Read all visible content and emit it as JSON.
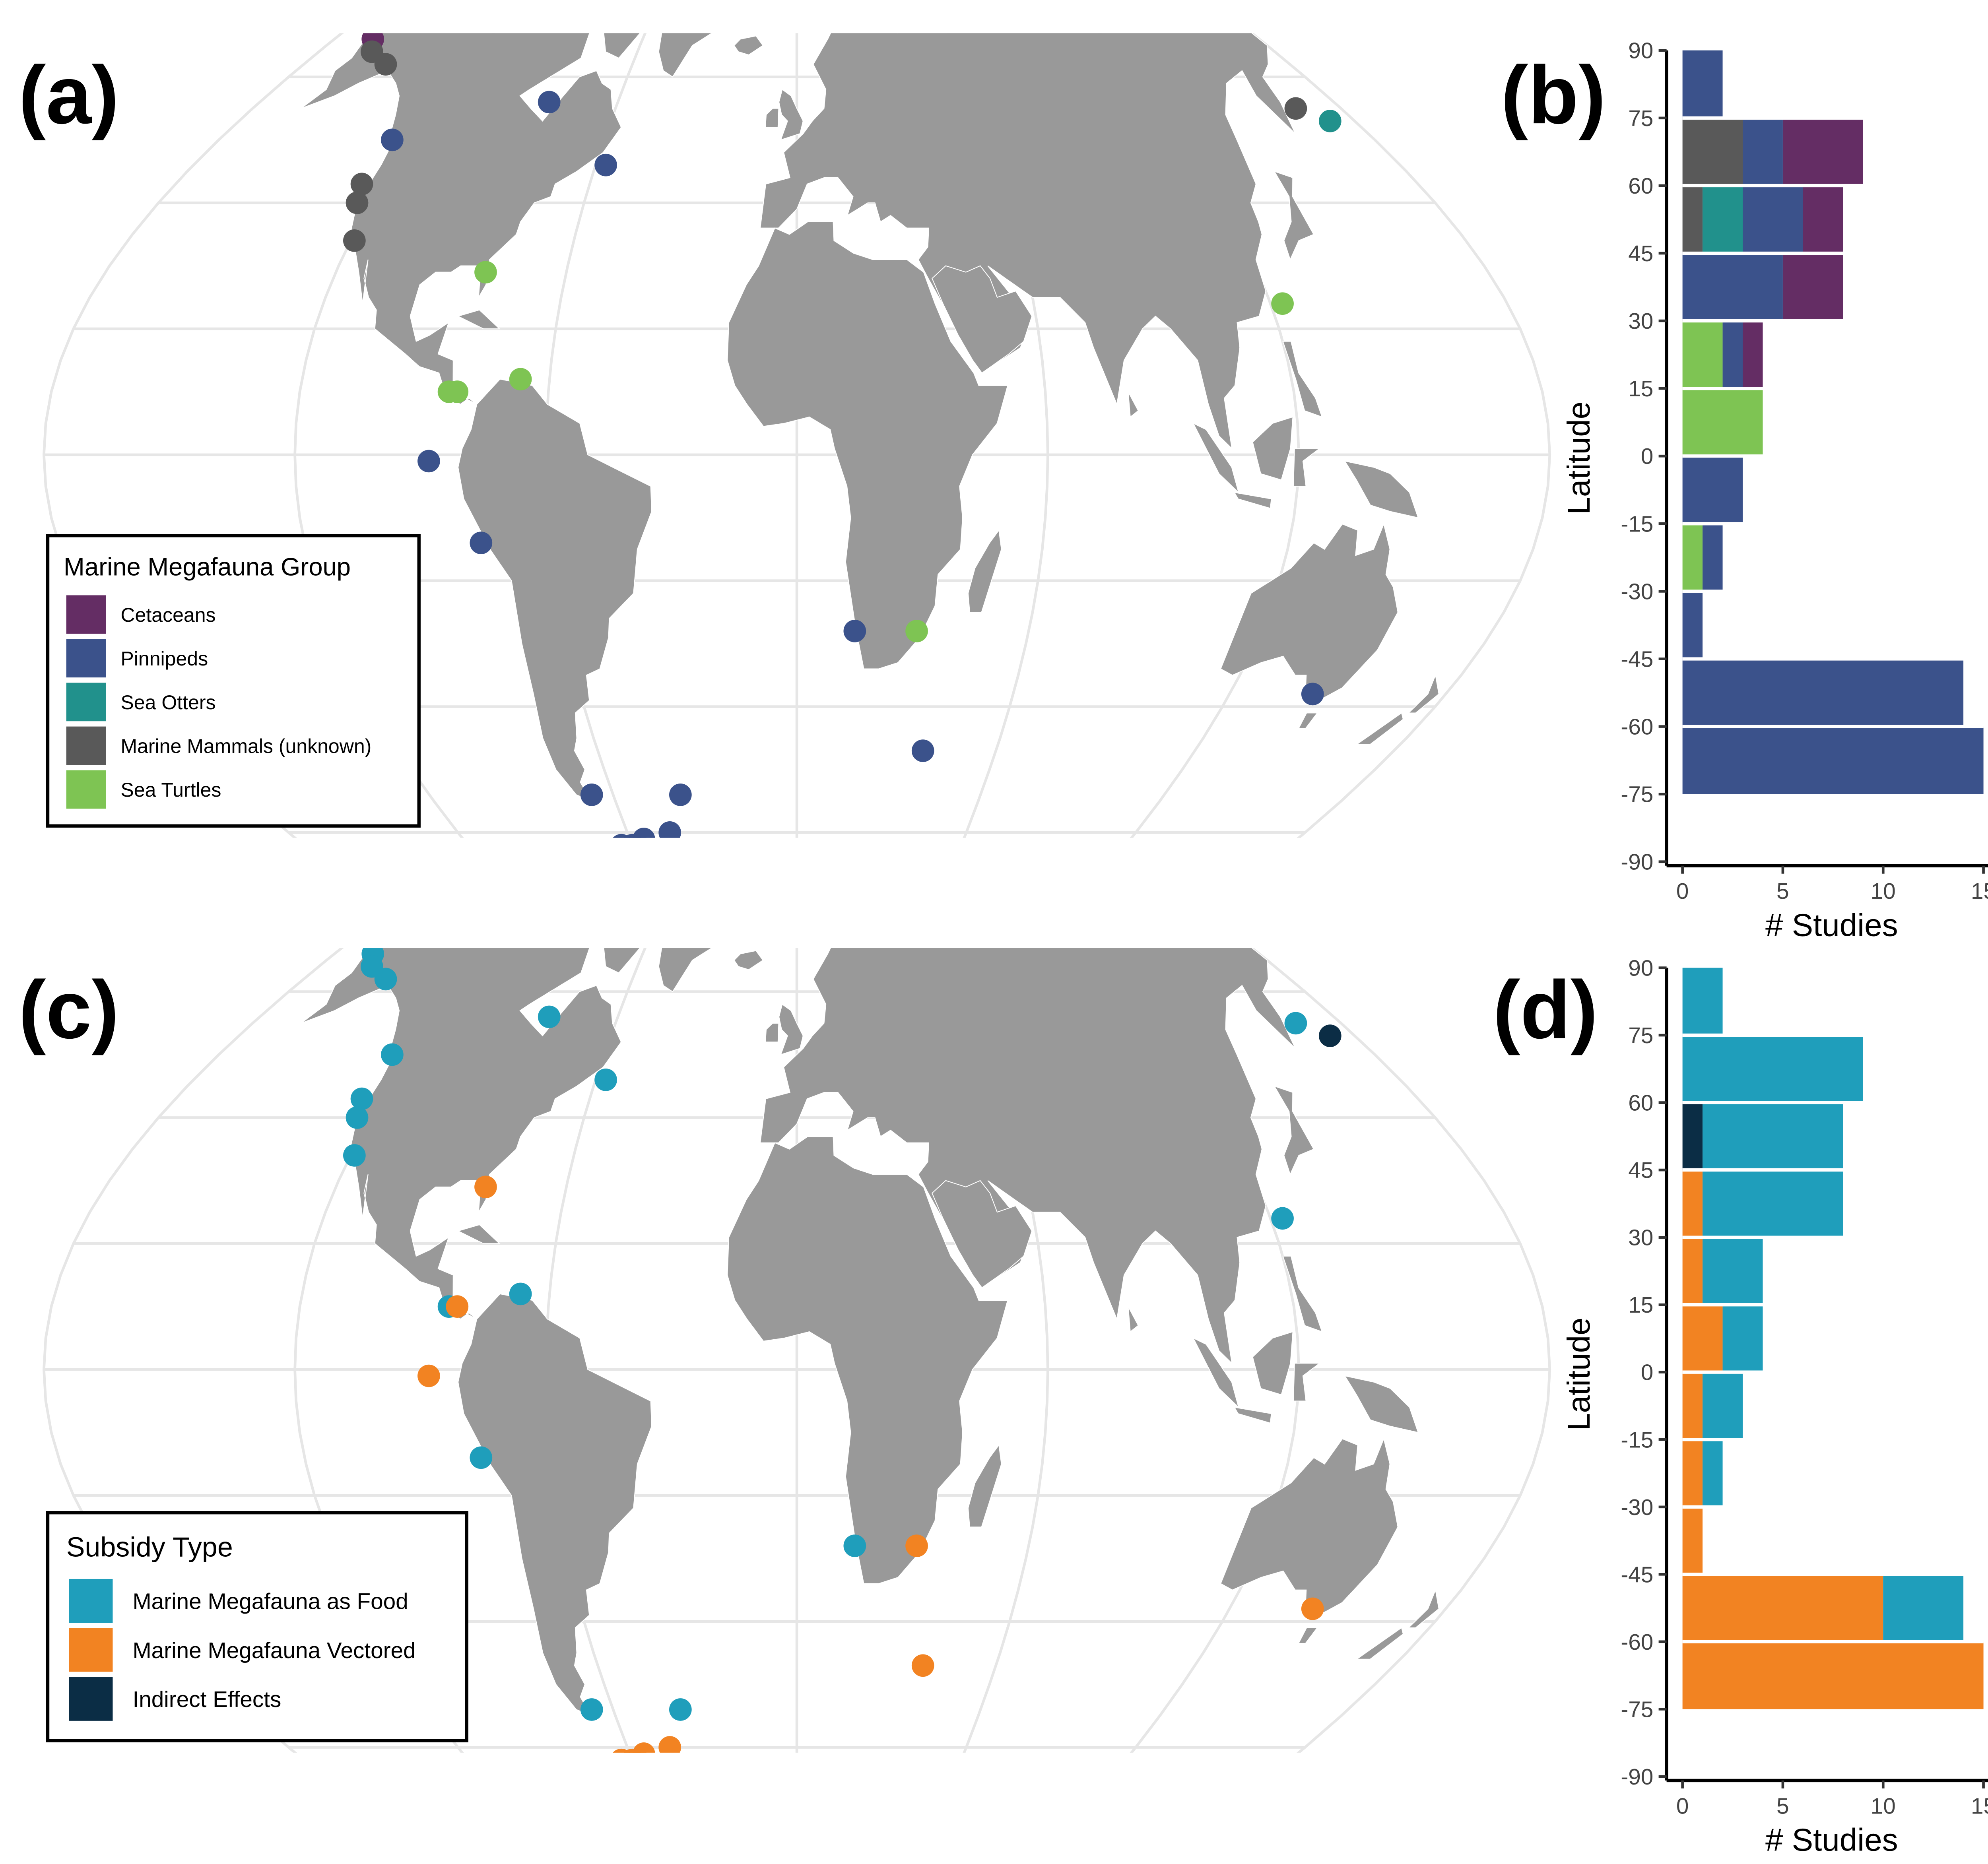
{
  "panel_labels": {
    "a": "(a)",
    "b": "(b)",
    "c": "(c)",
    "d": "(d)"
  },
  "legend_a": {
    "title": "Marine Megafauna Group",
    "items": [
      {
        "label": "Cetaceans",
        "color": "#642d64"
      },
      {
        "label": "Pinnipeds",
        "color": "#3b528b"
      },
      {
        "label": "Sea Otters",
        "color": "#21918c"
      },
      {
        "label": "Marine Mammals (unknown)",
        "color": "#595959"
      },
      {
        "label": "Sea Turtles",
        "color": "#7ec453"
      }
    ]
  },
  "legend_c": {
    "title": "Subsidy Type",
    "items": [
      {
        "label": "Marine Megafauna as Food",
        "color": "#1f9ebb"
      },
      {
        "label": "Marine Megafauna Vectored",
        "color": "#f28322"
      },
      {
        "label": "Indirect Effects",
        "color": "#0b2d45"
      }
    ]
  },
  "map_colors": {
    "land": "#999999",
    "ocean": "#ffffff",
    "graticule": "#e6e6e6"
  },
  "chart_data": [
    {
      "panel": "(a)",
      "type": "scatter",
      "title": "",
      "xlabel": "",
      "ylabel": "",
      "points_by_group": [
        {
          "name": "Cetaceans",
          "color": "#642d64",
          "lonlat": [
            [
              -165,
              66
            ],
            [
              -146,
              70
            ]
          ]
        },
        {
          "name": "Pinnipeds",
          "color": "#3b528b",
          "lonlat": [
            [
              -17,
              82
            ],
            [
              -83,
              56
            ],
            [
              -126,
              50
            ],
            [
              -57,
              46
            ],
            [
              -88,
              -1
            ],
            [
              -77,
              -14
            ],
            [
              15,
              -28
            ],
            [
              -67,
              -54
            ],
            [
              -64,
              -62
            ],
            [
              -60,
              -62
            ],
            [
              -59,
              -63
            ],
            [
              -58,
              -62
            ],
            [
              -55,
              -61
            ],
            [
              -45,
              -60
            ],
            [
              -38,
              -54
            ],
            [
              38,
              -47
            ],
            [
              143,
              -38
            ]
          ]
        },
        {
          "name": "Sea Otters",
          "color": "#21918c",
          "lonlat": [
            [
              172,
              53
            ]
          ]
        },
        {
          "name": "Marine Mammals (unknown)",
          "color": "#595959",
          "lonlat": [
            [
              -160,
              64
            ],
            [
              -152,
              70
            ],
            [
              -150,
              70
            ],
            [
              -150,
              62
            ],
            [
              -130,
              70
            ],
            [
              -96,
              72
            ],
            [
              -60,
              70
            ],
            [
              -16,
              82
            ],
            [
              165,
              55
            ],
            [
              -126,
              43
            ],
            [
              -124,
              40
            ],
            [
              -119,
              34
            ]
          ]
        },
        {
          "name": "Sea Turtles",
          "color": "#7ec453",
          "lonlat": [
            [
              -81,
              29
            ],
            [
              -84,
              10
            ],
            [
              -82,
              10
            ],
            [
              -67,
              12
            ],
            [
              31,
              -28
            ],
            [
              123,
              24
            ]
          ]
        }
      ]
    },
    {
      "panel": "(b)",
      "type": "bar",
      "orientation": "horizontal",
      "stacked": true,
      "ylabel": "Latitude",
      "xlabel": "# Studies",
      "xlim": [
        0,
        15
      ],
      "ylim": [
        -90,
        90
      ],
      "xticks": [
        0,
        5,
        10,
        15
      ],
      "yticks": [
        90,
        75,
        60,
        45,
        30,
        15,
        0,
        -15,
        -30,
        -45,
        -60,
        -75,
        -90
      ],
      "bin_width": 15,
      "categories": [
        "-75 to -60",
        "-60 to -45",
        "-45 to -30",
        "-30 to -15",
        "-15 to 0",
        "0 to 15",
        "15 to 30",
        "30 to 45",
        "45 to 60",
        "60 to 75",
        "75 to 90"
      ],
      "bins": [
        {
          "y0": -75,
          "segments": [
            {
              "group": "Pinnipeds",
              "color": "#3b528b",
              "value": 15
            }
          ]
        },
        {
          "y0": -60,
          "segments": [
            {
              "group": "Pinnipeds",
              "color": "#3b528b",
              "value": 14
            }
          ]
        },
        {
          "y0": -45,
          "segments": [
            {
              "group": "Pinnipeds",
              "color": "#3b528b",
              "value": 1
            }
          ]
        },
        {
          "y0": -30,
          "segments": [
            {
              "group": "Sea Turtles",
              "color": "#7ec453",
              "value": 1
            },
            {
              "group": "Pinnipeds",
              "color": "#3b528b",
              "value": 1
            }
          ]
        },
        {
          "y0": -15,
          "segments": [
            {
              "group": "Pinnipeds",
              "color": "#3b528b",
              "value": 3
            }
          ]
        },
        {
          "y0": 0,
          "segments": [
            {
              "group": "Sea Turtles",
              "color": "#7ec453",
              "value": 4
            }
          ]
        },
        {
          "y0": 15,
          "segments": [
            {
              "group": "Sea Turtles",
              "color": "#7ec453",
              "value": 2
            },
            {
              "group": "Pinnipeds",
              "color": "#3b528b",
              "value": 1
            },
            {
              "group": "Cetaceans",
              "color": "#642d64",
              "value": 1
            }
          ]
        },
        {
          "y0": 30,
          "segments": [
            {
              "group": "Pinnipeds",
              "color": "#3b528b",
              "value": 5
            },
            {
              "group": "Cetaceans",
              "color": "#642d64",
              "value": 3
            }
          ]
        },
        {
          "y0": 45,
          "segments": [
            {
              "group": "Marine Mammals (unknown)",
              "color": "#595959",
              "value": 1
            },
            {
              "group": "Sea Otters",
              "color": "#21918c",
              "value": 2
            },
            {
              "group": "Pinnipeds",
              "color": "#3b528b",
              "value": 3
            },
            {
              "group": "Cetaceans",
              "color": "#642d64",
              "value": 2
            }
          ]
        },
        {
          "y0": 60,
          "segments": [
            {
              "group": "Marine Mammals (unknown)",
              "color": "#595959",
              "value": 3
            },
            {
              "group": "Pinnipeds",
              "color": "#3b528b",
              "value": 2
            },
            {
              "group": "Cetaceans",
              "color": "#642d64",
              "value": 4
            }
          ]
        },
        {
          "y0": 75,
          "segments": [
            {
              "group": "Pinnipeds",
              "color": "#3b528b",
              "value": 2
            }
          ]
        }
      ]
    },
    {
      "panel": "(c)",
      "type": "scatter",
      "title": "",
      "xlabel": "",
      "ylabel": "",
      "points_by_group": [
        {
          "name": "Marine Megafauna as Food",
          "color": "#1f9ebb",
          "lonlat": [
            [
              -165,
              66
            ],
            [
              -160,
              64
            ],
            [
              -152,
              70
            ],
            [
              -150,
              70
            ],
            [
              -146,
              70
            ],
            [
              -150,
              62
            ],
            [
              -130,
              70
            ],
            [
              -96,
              72
            ],
            [
              -60,
              70
            ],
            [
              -17,
              82
            ],
            [
              -16,
              82
            ],
            [
              -83,
              56
            ],
            [
              -126,
              50
            ],
            [
              -57,
              46
            ],
            [
              -126,
              43
            ],
            [
              -124,
              40
            ],
            [
              -119,
              34
            ],
            [
              -84,
              10
            ],
            [
              -67,
              12
            ],
            [
              -77,
              -14
            ],
            [
              15,
              -28
            ],
            [
              -67,
              -54
            ],
            [
              -38,
              -54
            ],
            [
              123,
              24
            ],
            [
              165,
              55
            ]
          ]
        },
        {
          "name": "Marine Megafauna Vectored",
          "color": "#f28322",
          "lonlat": [
            [
              -81,
              29
            ],
            [
              -82,
              10
            ],
            [
              -88,
              -1
            ],
            [
              31,
              -28
            ],
            [
              38,
              -47
            ],
            [
              143,
              -38
            ],
            [
              -64,
              -62
            ],
            [
              -60,
              -62
            ],
            [
              -59,
              -63
            ],
            [
              -58,
              -62
            ],
            [
              -55,
              -61
            ],
            [
              -45,
              -60
            ]
          ]
        },
        {
          "name": "Indirect Effects",
          "color": "#0b2d45",
          "lonlat": [
            [
              172,
              53
            ]
          ]
        }
      ]
    },
    {
      "panel": "(d)",
      "type": "bar",
      "orientation": "horizontal",
      "stacked": true,
      "ylabel": "Latitude",
      "xlabel": "# Studies",
      "xlim": [
        0,
        15
      ],
      "ylim": [
        -90,
        90
      ],
      "xticks": [
        0,
        5,
        10,
        15
      ],
      "yticks": [
        90,
        75,
        60,
        45,
        30,
        15,
        0,
        -15,
        -30,
        -45,
        -60,
        -75,
        -90
      ],
      "bin_width": 15,
      "categories": [
        "-75 to -60",
        "-60 to -45",
        "-45 to -30",
        "-30 to -15",
        "-15 to 0",
        "0 to 15",
        "15 to 30",
        "30 to 45",
        "45 to 60",
        "60 to 75",
        "75 to 90"
      ],
      "bins": [
        {
          "y0": -75,
          "segments": [
            {
              "group": "Marine Megafauna Vectored",
              "color": "#f28322",
              "value": 15
            }
          ]
        },
        {
          "y0": -60,
          "segments": [
            {
              "group": "Marine Megafauna Vectored",
              "color": "#f28322",
              "value": 10
            },
            {
              "group": "Marine Megafauna as Food",
              "color": "#1f9ebb",
              "value": 4
            }
          ]
        },
        {
          "y0": -45,
          "segments": [
            {
              "group": "Marine Megafauna Vectored",
              "color": "#f28322",
              "value": 1
            }
          ]
        },
        {
          "y0": -30,
          "segments": [
            {
              "group": "Marine Megafauna Vectored",
              "color": "#f28322",
              "value": 1
            },
            {
              "group": "Marine Megafauna as Food",
              "color": "#1f9ebb",
              "value": 1
            }
          ]
        },
        {
          "y0": -15,
          "segments": [
            {
              "group": "Marine Megafauna Vectored",
              "color": "#f28322",
              "value": 1
            },
            {
              "group": "Marine Megafauna as Food",
              "color": "#1f9ebb",
              "value": 2
            }
          ]
        },
        {
          "y0": 0,
          "segments": [
            {
              "group": "Marine Megafauna Vectored",
              "color": "#f28322",
              "value": 2
            },
            {
              "group": "Marine Megafauna as Food",
              "color": "#1f9ebb",
              "value": 2
            }
          ]
        },
        {
          "y0": 15,
          "segments": [
            {
              "group": "Marine Megafauna Vectored",
              "color": "#f28322",
              "value": 1
            },
            {
              "group": "Marine Megafauna as Food",
              "color": "#1f9ebb",
              "value": 3
            }
          ]
        },
        {
          "y0": 30,
          "segments": [
            {
              "group": "Marine Megafauna Vectored",
              "color": "#f28322",
              "value": 1
            },
            {
              "group": "Marine Megafauna as Food",
              "color": "#1f9ebb",
              "value": 7
            }
          ]
        },
        {
          "y0": 45,
          "segments": [
            {
              "group": "Indirect Effects",
              "color": "#0b2d45",
              "value": 1
            },
            {
              "group": "Marine Megafauna as Food",
              "color": "#1f9ebb",
              "value": 7
            }
          ]
        },
        {
          "y0": 60,
          "segments": [
            {
              "group": "Marine Megafauna as Food",
              "color": "#1f9ebb",
              "value": 9
            }
          ]
        },
        {
          "y0": 75,
          "segments": [
            {
              "group": "Marine Megafauna as Food",
              "color": "#1f9ebb",
              "value": 2
            }
          ]
        }
      ]
    }
  ]
}
